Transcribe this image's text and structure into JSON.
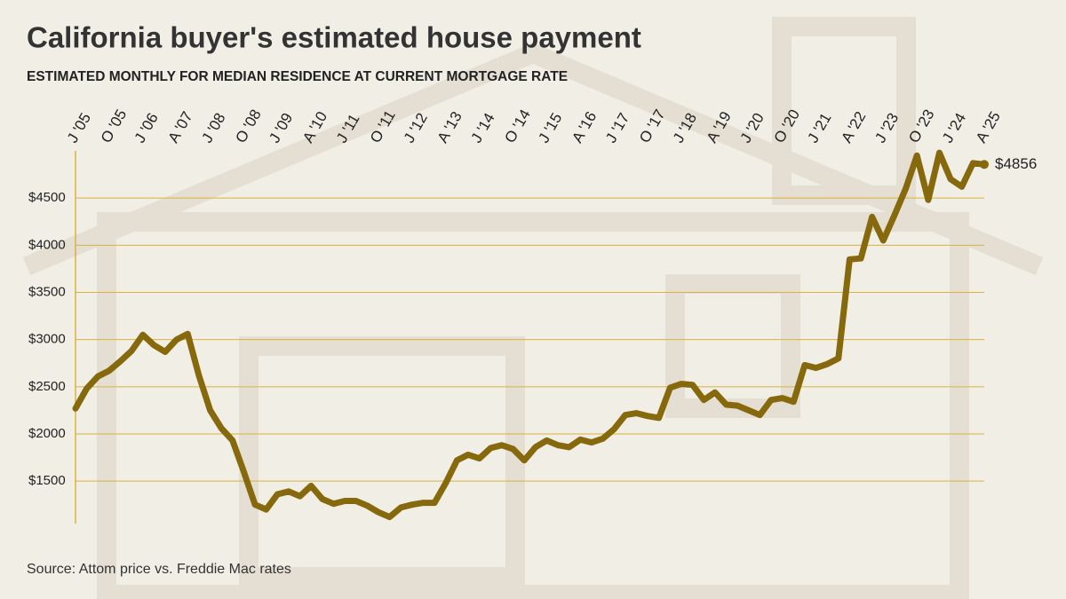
{
  "chart_data": {
    "type": "line",
    "title": "California buyer's estimated house payment",
    "subtitle": "ESTIMATED MONTHLY FOR MEDIAN RESIDENCE AT CURRENT MORTGAGE RATE",
    "source": "Source: Attom price vs. Freddie Mac rates",
    "color": "#85690c",
    "grid_color": "#d8b23e",
    "categories": [
      "J '05",
      null,
      null,
      "O '05",
      null,
      null,
      "J '06",
      null,
      null,
      "A '07",
      null,
      null,
      "J '08",
      null,
      null,
      "O '08",
      null,
      null,
      "J '09",
      null,
      null,
      "A '10",
      null,
      null,
      "J '11",
      null,
      null,
      "O '11",
      null,
      null,
      "J '12",
      null,
      null,
      "A '13",
      null,
      null,
      "J '14",
      null,
      null,
      "O '14",
      null,
      null,
      "J '15",
      null,
      null,
      "A '16",
      null,
      null,
      "J '17",
      null,
      null,
      "O '17",
      null,
      null,
      "J '18",
      null,
      null,
      "A '19",
      null,
      null,
      "J '20",
      null,
      null,
      "O '20",
      null,
      null,
      "J '21",
      null,
      null,
      "A '22",
      null,
      null,
      "J '23",
      null,
      null,
      "O '23",
      null,
      null,
      "J '24",
      null,
      null,
      "A '25"
    ],
    "values": [
      2270,
      2480,
      2610,
      2670,
      2770,
      2880,
      3050,
      2940,
      2870,
      3000,
      3060,
      2620,
      2250,
      2060,
      1930,
      1600,
      1250,
      1200,
      1360,
      1390,
      1340,
      1450,
      1310,
      1260,
      1290,
      1290,
      1240,
      1170,
      1120,
      1220,
      1250,
      1270,
      1270,
      1480,
      1720,
      1780,
      1740,
      1850,
      1880,
      1840,
      1720,
      1860,
      1930,
      1880,
      1860,
      1940,
      1910,
      1950,
      2050,
      2200,
      2220,
      2190,
      2170,
      2490,
      2530,
      2520,
      2360,
      2440,
      2310,
      2300,
      2250,
      2200,
      2360,
      2380,
      2340,
      2730,
      2700,
      2740,
      2800,
      3850,
      3860,
      4300,
      4050,
      4320,
      4600,
      4950,
      4480,
      4980,
      4700,
      4620,
      4870,
      4856
    ],
    "value_labels": [
      null,
      null,
      null,
      null,
      null,
      null,
      null,
      null,
      null,
      null,
      null,
      null,
      null,
      null,
      null,
      null,
      null,
      null,
      null,
      null,
      null,
      null,
      null,
      null,
      null,
      null,
      null,
      null,
      null,
      null,
      null,
      null,
      null,
      null,
      null,
      null,
      null,
      null,
      null,
      null,
      null,
      null,
      null,
      null,
      null,
      null,
      null,
      null,
      null,
      null,
      null,
      null,
      null,
      null,
      null,
      null,
      null,
      null,
      null,
      null,
      null,
      null,
      null,
      null,
      null,
      null,
      null,
      null,
      null,
      null,
      null,
      null,
      null,
      null,
      null,
      null,
      null,
      null,
      null,
      null,
      null,
      "$4856"
    ],
    "ylim": [
      1050,
      5000
    ],
    "yticks": [
      {
        "value": 1500,
        "label": "$1500"
      },
      {
        "value": 2000,
        "label": "$2000"
      },
      {
        "value": 2500,
        "label": "$2500"
      },
      {
        "value": 3000,
        "label": "$3000"
      },
      {
        "value": 3500,
        "label": "$3500"
      },
      {
        "value": 4000,
        "label": "$4000"
      },
      {
        "value": 4500,
        "label": "$4500"
      }
    ],
    "grid": true
  }
}
